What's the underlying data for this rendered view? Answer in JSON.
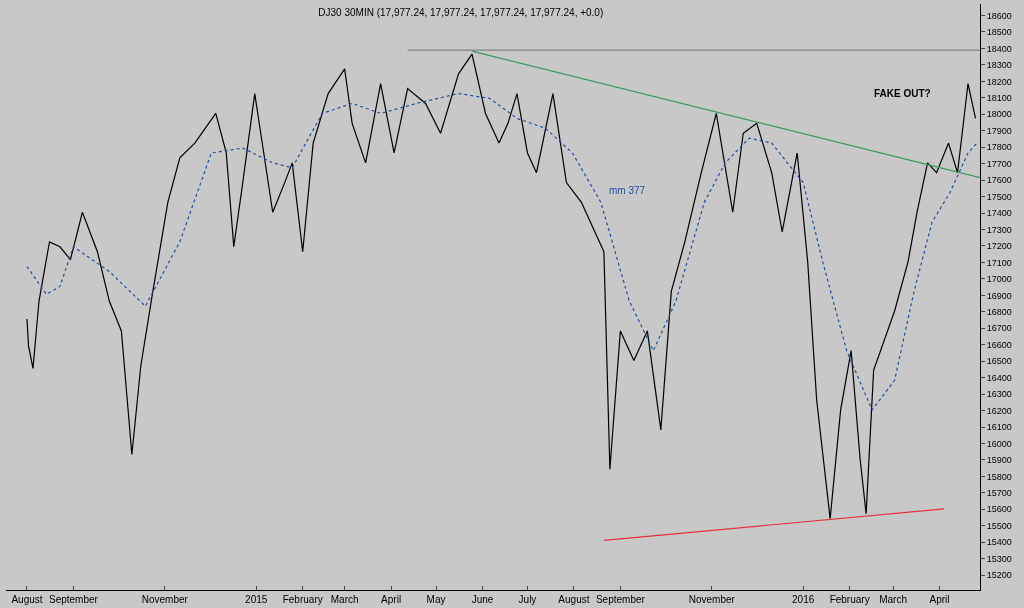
{
  "chart_data": {
    "type": "line",
    "title": "DJ30 30MIN (17,977.24, 17,977.24, 17,977.24, 17,977.24, +0.0)",
    "series": [
      {
        "color": "#000000",
        "x": [
          "2014-08-01",
          "2014-08-02",
          "2014-08-05",
          "2014-08-09",
          "2014-08-16",
          "2014-08-23",
          "2014-08-30",
          "2014-09-07",
          "2014-09-17",
          "2014-09-25",
          "2014-10-03",
          "2014-10-10",
          "2014-10-16",
          "2014-10-24",
          "2014-11-03",
          "2014-11-11",
          "2014-11-21",
          "2014-12-05",
          "2014-12-12",
          "2014-12-17",
          "2014-12-23",
          "2014-12-31",
          "2015-01-06",
          "2015-01-12",
          "2015-01-20",
          "2015-01-25",
          "2015-02-01",
          "2015-02-08",
          "2015-02-18",
          "2015-03-01",
          "2015-03-06",
          "2015-03-15",
          "2015-03-25",
          "2015-04-03",
          "2015-04-12",
          "2015-04-24",
          "2015-05-04",
          "2015-05-16",
          "2015-05-25",
          "2015-06-03",
          "2015-06-12",
          "2015-06-18",
          "2015-06-24",
          "2015-07-01",
          "2015-07-07",
          "2015-07-18",
          "2015-07-27",
          "2015-08-06",
          "2015-08-15",
          "2015-08-21",
          "2015-08-25",
          "2015-09-01",
          "2015-09-10",
          "2015-09-19",
          "2015-09-28",
          "2015-10-05",
          "2015-10-14",
          "2015-10-25",
          "2015-11-04",
          "2015-11-15",
          "2015-11-22",
          "2015-12-01",
          "2015-12-11",
          "2015-12-18",
          "2015-12-28",
          "2016-01-04",
          "2016-01-10",
          "2016-01-19",
          "2016-01-26",
          "2016-02-02",
          "2016-02-08",
          "2016-02-12",
          "2016-02-17",
          "2016-03-02",
          "2016-03-11",
          "2016-03-17",
          "2016-03-24",
          "2016-03-30",
          "2016-04-07",
          "2016-04-13",
          "2016-04-20",
          "2016-04-25"
        ],
        "values": [
          16756,
          16594,
          16456,
          16864,
          17225,
          17195,
          17117,
          17405,
          17165,
          16864,
          16684,
          15933,
          16474,
          16924,
          17465,
          17735,
          17825,
          18005,
          17765,
          17195,
          17585,
          18126,
          17765,
          17405,
          17585,
          17705,
          17165,
          17825,
          18126,
          18276,
          17945,
          17705,
          18186,
          17765,
          18156,
          18066,
          17885,
          18246,
          18366,
          18005,
          17825,
          17945,
          18126,
          17765,
          17645,
          18126,
          17585,
          17465,
          17285,
          17165,
          15844,
          16684,
          16504,
          16684,
          16083,
          16924,
          17225,
          17645,
          18005,
          17405,
          17885,
          17945,
          17645,
          17285,
          17765,
          17105,
          16264,
          15543,
          16204,
          16564,
          15904,
          15573,
          16444,
          16805,
          17105,
          17405,
          17705,
          17645,
          17825,
          17645,
          18186,
          17975
        ]
      },
      {
        "name": "mm 377",
        "color": "#1f4e9c",
        "line_style": "dotted",
        "x": [
          "2014-08-01",
          "2014-08-14",
          "2014-08-23",
          "2014-09-01",
          "2014-09-25",
          "2014-10-19",
          "2014-11-11",
          "2014-12-02",
          "2014-12-23",
          "2015-01-12",
          "2015-01-25",
          "2015-02-14",
          "2015-03-06",
          "2015-03-25",
          "2015-04-18",
          "2015-05-16",
          "2015-06-06",
          "2015-06-24",
          "2015-07-13",
          "2015-07-31",
          "2015-08-19",
          "2015-09-07",
          "2015-09-23",
          "2015-10-08",
          "2015-10-27",
          "2015-11-10",
          "2015-11-26",
          "2015-12-11",
          "2016-01-01",
          "2016-01-14",
          "2016-01-30",
          "2016-02-16",
          "2016-03-02",
          "2016-03-15",
          "2016-03-27",
          "2016-04-08",
          "2016-04-20",
          "2016-04-26"
        ],
        "values": [
          17075,
          16906,
          16954,
          17195,
          17045,
          16834,
          17225,
          17765,
          17795,
          17705,
          17675,
          18005,
          18066,
          18005,
          18066,
          18126,
          18096,
          17975,
          17915,
          17765,
          17465,
          16864,
          16564,
          16864,
          17465,
          17705,
          17855,
          17825,
          17585,
          17105,
          16564,
          16204,
          16384,
          16924,
          17345,
          17525,
          17765,
          17825
        ]
      },
      {
        "color": "#3a9a5a",
        "x": [
          "2015-05-25",
          "2016-04-28"
        ],
        "values": [
          18384,
          17615
        ]
      },
      {
        "color": "#e8303c",
        "x": [
          "2015-08-21",
          "2016-04-04"
        ],
        "values": [
          15411,
          15603
        ]
      },
      {
        "color": "#808080",
        "x": [
          "2015-04-12",
          "2016-04-28"
        ],
        "values": [
          18390,
          18390
        ]
      }
    ],
    "annotations": [
      "FAKE OUT?"
    ],
    "xlim": [
      "2014-07-18",
      "2016-04-28"
    ],
    "xticks": [
      {
        "value": "2014-08-01",
        "label": "August"
      },
      {
        "value": "2014-09-01",
        "label": "September"
      },
      {
        "value": "2014-11-01",
        "label": "November"
      },
      {
        "value": "2015-01-01",
        "label": "2015"
      },
      {
        "value": "2015-02-01",
        "label": "February"
      },
      {
        "value": "2015-03-01",
        "label": "March"
      },
      {
        "value": "2015-04-01",
        "label": "April"
      },
      {
        "value": "2015-05-01",
        "label": "May"
      },
      {
        "value": "2015-06-01",
        "label": "June"
      },
      {
        "value": "2015-07-01",
        "label": "July"
      },
      {
        "value": "2015-08-01",
        "label": "August"
      },
      {
        "value": "2015-09-01",
        "label": "September"
      },
      {
        "value": "2015-11-01",
        "label": "November"
      },
      {
        "value": "2016-01-01",
        "label": "2016"
      },
      {
        "value": "2016-02-01",
        "label": "February"
      },
      {
        "value": "2016-03-01",
        "label": "March"
      },
      {
        "value": "2016-04-01",
        "label": "April"
      }
    ],
    "ylim": [
      15110,
      18670
    ],
    "yticks": [
      15200,
      15300,
      15400,
      15500,
      15600,
      15700,
      15800,
      15900,
      16000,
      16100,
      16200,
      16300,
      16400,
      16500,
      16600,
      16700,
      16800,
      16900,
      17000,
      17100,
      17200,
      17300,
      17400,
      17500,
      17600,
      17700,
      17800,
      17900,
      18000,
      18100,
      18200,
      18300,
      18400,
      18500,
      18600
    ],
    "grid": false,
    "legend": false
  }
}
